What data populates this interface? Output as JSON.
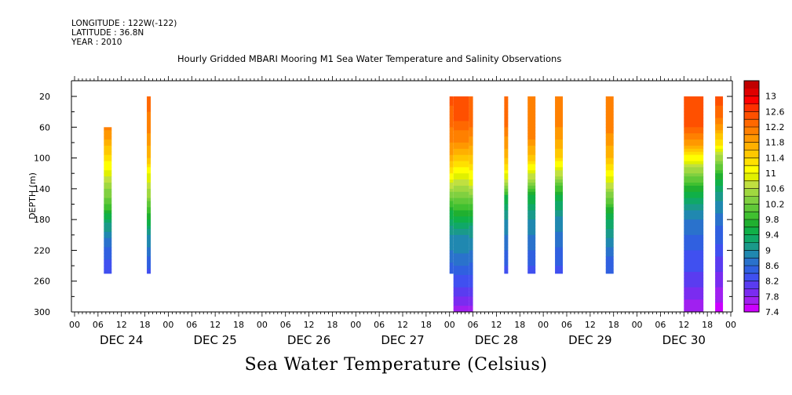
{
  "header": {
    "longitude": "LONGITUDE : 122W(-122)",
    "latitude": "LATITUDE : 36.8N",
    "year": "YEAR : 2010"
  },
  "chart_data": {
    "type": "heatmap",
    "title": "Hourly Gridded MBARI Mooring M1 Sea Water Temperature and Salinity Observations",
    "bottom_title": "Sea Water Temperature (Celsius)",
    "ylabel": "DEPTH (m)",
    "y_ticks": [
      "20",
      "60",
      "100",
      "140",
      "180",
      "220",
      "260",
      "300"
    ],
    "y_tick_values": [
      20,
      60,
      100,
      140,
      180,
      220,
      260,
      300
    ],
    "ylim": [
      300,
      0
    ],
    "xlim_hours": [
      0,
      168
    ],
    "x_hour_ticks": [
      "00",
      "06",
      "12",
      "18",
      "00",
      "06",
      "12",
      "18",
      "00",
      "06",
      "12",
      "18",
      "00",
      "06",
      "12",
      "18",
      "00",
      "06",
      "12",
      "18",
      "00",
      "06",
      "12",
      "18",
      "00",
      "06",
      "12",
      "18",
      "00"
    ],
    "x_day_labels": [
      "DEC 24",
      "DEC 25",
      "DEC 26",
      "DEC 27",
      "DEC 28",
      "DEC 29",
      "DEC 30"
    ],
    "colorbar": {
      "labels": [
        "13",
        "12.6",
        "12.2",
        "11.8",
        "11.4",
        "11",
        "10.6",
        "10.2",
        "9.8",
        "9.4",
        "9",
        "8.6",
        "8.2",
        "7.8",
        "7.4"
      ],
      "min": 7.4,
      "max": 13.0,
      "step": 0.2,
      "colors": [
        "#cc00ff",
        "#a020f0",
        "#7a2cf0",
        "#5a3cf0",
        "#4050f0",
        "#3060e0",
        "#2a72cc",
        "#2088b0",
        "#1a9a8a",
        "#10a868",
        "#10b048",
        "#20b030",
        "#40c030",
        "#60c838",
        "#80d040",
        "#a0d840",
        "#c0e040",
        "#e0f000",
        "#ffff00",
        "#ffe000",
        "#ffc800",
        "#ffb000",
        "#ff9800",
        "#ff8000",
        "#ff6800",
        "#ff5000",
        "#ff3000",
        "#ff0000",
        "#e00000",
        "#c00000"
      ]
    },
    "series": [
      {
        "start_hour": 7.5,
        "end_hour": 9.5,
        "profile": [
          [
            60,
            12.1
          ],
          [
            90,
            11.5
          ],
          [
            115,
            11.0
          ],
          [
            140,
            10.4
          ],
          [
            165,
            9.9
          ],
          [
            185,
            9.2
          ],
          [
            205,
            8.8
          ],
          [
            230,
            8.4
          ],
          [
            250,
            8.2
          ]
        ]
      },
      {
        "start_hour": 18.5,
        "end_hour": 19.5,
        "profile": [
          [
            20,
            12.3
          ],
          [
            60,
            12.1
          ],
          [
            100,
            11.6
          ],
          [
            120,
            11.0
          ],
          [
            150,
            10.4
          ],
          [
            180,
            9.6
          ],
          [
            200,
            9.0
          ],
          [
            230,
            8.6
          ],
          [
            250,
            8.3
          ]
        ]
      },
      {
        "start_hour": 96,
        "end_hour": 97,
        "profile": [
          [
            20,
            12.5
          ],
          [
            60,
            12.2
          ],
          [
            90,
            11.9
          ],
          [
            120,
            11.2
          ],
          [
            145,
            10.4
          ],
          [
            170,
            9.6
          ],
          [
            200,
            9.0
          ],
          [
            230,
            8.7
          ],
          [
            250,
            8.4
          ]
        ]
      },
      {
        "start_hour": 97,
        "end_hour": 101,
        "profile": [
          [
            20,
            12.6
          ],
          [
            50,
            12.4
          ],
          [
            80,
            12.0
          ],
          [
            110,
            11.3
          ],
          [
            140,
            10.5
          ],
          [
            170,
            9.7
          ],
          [
            200,
            9.0
          ],
          [
            235,
            8.7
          ],
          [
            260,
            8.3
          ],
          [
            300,
            7.7
          ]
        ]
      },
      {
        "start_hour": 101,
        "end_hour": 102,
        "profile": [
          [
            20,
            12.4
          ],
          [
            60,
            12.2
          ],
          [
            100,
            11.5
          ],
          [
            130,
            11.0
          ],
          [
            160,
            10.0
          ],
          [
            190,
            9.2
          ],
          [
            230,
            8.7
          ],
          [
            260,
            8.3
          ],
          [
            300,
            7.7
          ]
        ]
      },
      {
        "start_hour": 110,
        "end_hour": 111,
        "profile": [
          [
            20,
            12.3
          ],
          [
            60,
            12.2
          ],
          [
            100,
            11.6
          ],
          [
            125,
            10.9
          ],
          [
            150,
            9.6
          ],
          [
            180,
            9.0
          ],
          [
            220,
            8.6
          ],
          [
            250,
            8.3
          ]
        ]
      },
      {
        "start_hour": 116,
        "end_hour": 118,
        "profile": [
          [
            20,
            12.2
          ],
          [
            70,
            12.1
          ],
          [
            100,
            11.5
          ],
          [
            125,
            10.7
          ],
          [
            150,
            9.6
          ],
          [
            180,
            9.0
          ],
          [
            220,
            8.6
          ],
          [
            250,
            8.3
          ]
        ]
      },
      {
        "start_hour": 123,
        "end_hour": 125,
        "profile": [
          [
            20,
            12.2
          ],
          [
            60,
            12.0
          ],
          [
            95,
            11.5
          ],
          [
            120,
            10.7
          ],
          [
            145,
            9.7
          ],
          [
            175,
            9.0
          ],
          [
            215,
            8.6
          ],
          [
            250,
            8.3
          ]
        ]
      },
      {
        "start_hour": 136,
        "end_hour": 138,
        "profile": [
          [
            20,
            12.2
          ],
          [
            60,
            12.1
          ],
          [
            100,
            11.6
          ],
          [
            130,
            10.9
          ],
          [
            155,
            10.1
          ],
          [
            180,
            9.4
          ],
          [
            220,
            8.7
          ],
          [
            250,
            8.4
          ]
        ]
      },
      {
        "start_hour": 156,
        "end_hour": 161,
        "profile": [
          [
            20,
            12.6
          ],
          [
            55,
            12.5
          ],
          [
            80,
            11.9
          ],
          [
            100,
            11.1
          ],
          [
            125,
            10.2
          ],
          [
            150,
            9.4
          ],
          [
            180,
            8.8
          ],
          [
            220,
            8.4
          ],
          [
            260,
            8.1
          ],
          [
            300,
            7.6
          ]
        ]
      },
      {
        "start_hour": 164,
        "end_hour": 166,
        "profile": [
          [
            20,
            12.5
          ],
          [
            50,
            12.2
          ],
          [
            80,
            11.3
          ],
          [
            100,
            10.5
          ],
          [
            130,
            9.5
          ],
          [
            160,
            8.9
          ],
          [
            200,
            8.5
          ],
          [
            240,
            8.1
          ],
          [
            270,
            7.8
          ],
          [
            300,
            7.5
          ]
        ]
      }
    ]
  }
}
